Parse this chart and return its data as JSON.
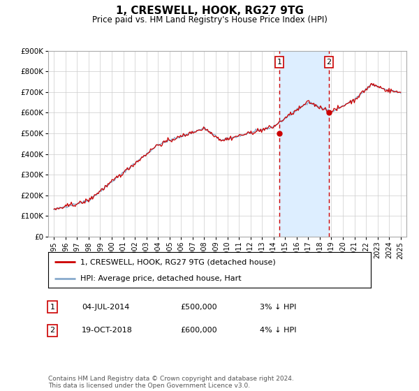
{
  "title": "1, CRESWELL, HOOK, RG27 9TG",
  "subtitle": "Price paid vs. HM Land Registry's House Price Index (HPI)",
  "legend_line1": "1, CRESWELL, HOOK, RG27 9TG (detached house)",
  "legend_line2": "HPI: Average price, detached house, Hart",
  "transaction1_date": "04-JUL-2014",
  "transaction1_price": "£500,000",
  "transaction1_hpi": "3% ↓ HPI",
  "transaction1_year": 2014.5,
  "transaction2_date": "19-OCT-2018",
  "transaction2_price": "£600,000",
  "transaction2_hpi": "4% ↓ HPI",
  "transaction2_year": 2018.8,
  "footer": "Contains HM Land Registry data © Crown copyright and database right 2024.\nThis data is licensed under the Open Government Licence v3.0.",
  "line_color_red": "#cc0000",
  "line_color_blue": "#88aacc",
  "shade_color": "#ddeeff",
  "dashed_color": "#cc0000",
  "ylim": [
    0,
    900000
  ],
  "xlim_start": 1994.5,
  "xlim_end": 2025.5,
  "yticks": [
    0,
    100000,
    200000,
    300000,
    400000,
    500000,
    600000,
    700000,
    800000,
    900000
  ],
  "ytick_labels": [
    "£0",
    "£100K",
    "£200K",
    "£300K",
    "£400K",
    "£500K",
    "£600K",
    "£700K",
    "£800K",
    "£900K"
  ],
  "xticks": [
    1995,
    1996,
    1997,
    1998,
    1999,
    2000,
    2001,
    2002,
    2003,
    2004,
    2005,
    2006,
    2007,
    2008,
    2009,
    2010,
    2011,
    2012,
    2013,
    2014,
    2015,
    2016,
    2017,
    2018,
    2019,
    2020,
    2021,
    2022,
    2023,
    2024,
    2025
  ]
}
